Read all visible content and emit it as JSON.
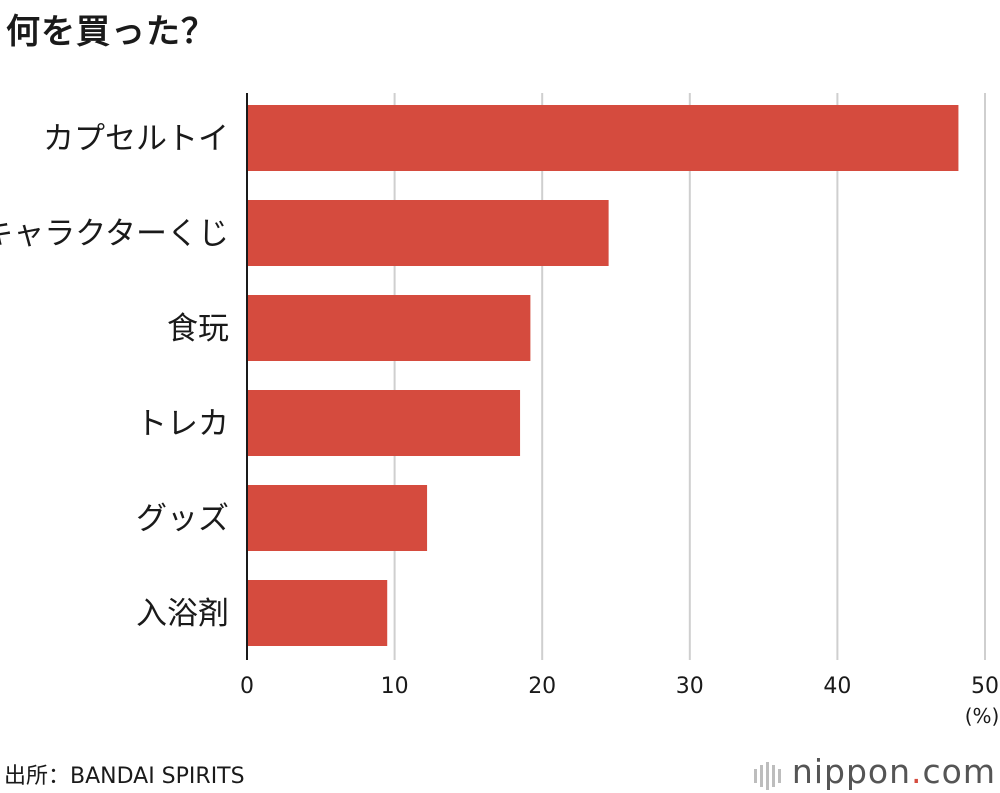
{
  "header": {
    "title": "何を買った？"
  },
  "chart_data": {
    "type": "bar",
    "orientation": "horizontal",
    "categories": [
      "カプセルトイ",
      "キャラクターくじ",
      "食玩",
      "トレカ",
      "グッズ",
      "入浴剤"
    ],
    "values": [
      48.2,
      24.5,
      19.2,
      18.5,
      12.2,
      9.5
    ],
    "xlim": [
      0,
      50
    ],
    "xticks": [
      0,
      10,
      20,
      30,
      40,
      50
    ],
    "unit_label": "(%)",
    "bar_color": "#d54b3e",
    "grid": true,
    "title": "何を買った？"
  },
  "footer": {
    "source": "出所：BANDAI SPIRITS",
    "brand_name": "nippon",
    "brand_dot": ".",
    "brand_tld": "com"
  }
}
